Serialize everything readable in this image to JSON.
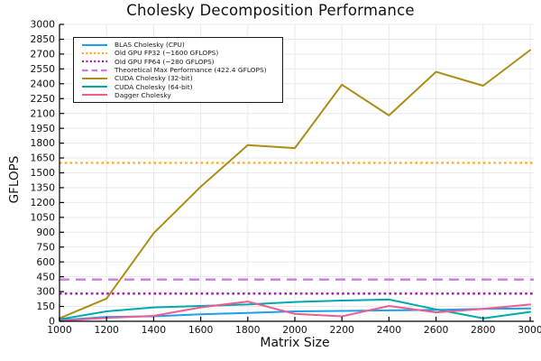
{
  "chart_data": {
    "type": "line",
    "title": "Cholesky Decomposition Performance",
    "xlabel": "Matrix Size",
    "ylabel": "GFLOPS",
    "xlim": [
      1000,
      3000
    ],
    "ylim": [
      0,
      3000
    ],
    "x_tick_step": 200,
    "y_tick_step": 150,
    "grid": true,
    "grid_color": "#e9e9e9",
    "axis_color": "#000000",
    "legend_position": "top-left",
    "x": [
      1000,
      1200,
      1400,
      1600,
      1800,
      2000,
      2200,
      2400,
      2600,
      2800,
      3000
    ],
    "series": [
      {
        "name": "BLAS Cholesky (CPU)",
        "color": "#1B9FEE",
        "style": "solid",
        "kind": "line",
        "values": [
          10,
          45,
          50,
          70,
          85,
          100,
          105,
          110,
          115,
          125,
          130
        ]
      },
      {
        "name": "Old GPU FP32 (~1600 GFLOPS)",
        "color": "#FFA71E",
        "style": "dotted",
        "kind": "hline",
        "hline": 1600
      },
      {
        "name": "Old GPU FP64 (~280 GFLOPS)",
        "color": "#9D17A6",
        "style": "dotted",
        "kind": "hline",
        "hline": 280
      },
      {
        "name": "Theoretical Max Performance (422.4 GFLOPS)",
        "color": "#CD7BDC",
        "style": "dashed",
        "kind": "hline",
        "hline": 422.4
      },
      {
        "name": "CUDA Cholesky (32-bit)",
        "color": "#AC8D18",
        "style": "solid",
        "kind": "line",
        "values": [
          30,
          230,
          890,
          1360,
          1780,
          1750,
          2390,
          2080,
          2520,
          2380,
          2740
        ]
      },
      {
        "name": "CUDA Cholesky (64-bit)",
        "color": "#00A9AD",
        "style": "solid",
        "kind": "line",
        "values": [
          20,
          100,
          140,
          155,
          170,
          195,
          210,
          220,
          120,
          30,
          95
        ]
      },
      {
        "name": "Dagger Cholesky",
        "color": "#EE5C90",
        "style": "solid",
        "kind": "line",
        "values": [
          5,
          35,
          55,
          140,
          200,
          75,
          50,
          155,
          90,
          125,
          170
        ]
      }
    ]
  }
}
